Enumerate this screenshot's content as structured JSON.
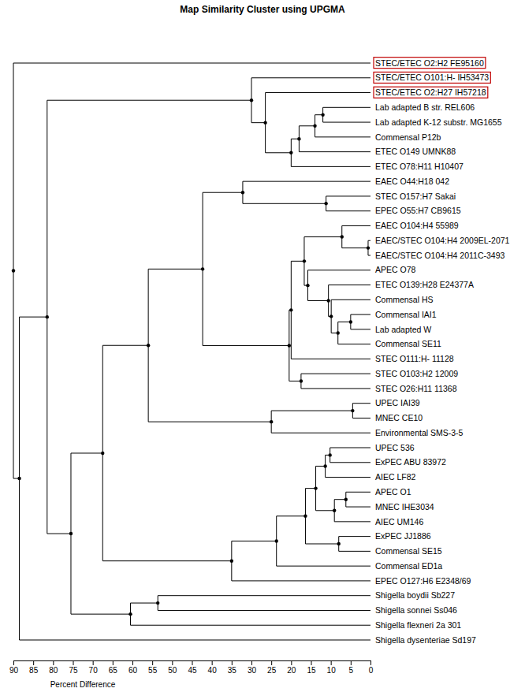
{
  "chart_data": {
    "type": "dendrogram",
    "title": "Map Similarity Cluster using UPGMA",
    "x_label": "Percent Difference",
    "xlim": [
      90,
      0
    ],
    "xticks": [
      90,
      85,
      80,
      75,
      70,
      65,
      60,
      55,
      50,
      45,
      40,
      35,
      30,
      25,
      20,
      15,
      10,
      5,
      0
    ],
    "tree": {
      "height": 90,
      "children": [
        {
          "name": "STEC/ETEC O2:H2 FE95160",
          "color": "#c00000"
        },
        {
          "height": 88.5,
          "children": [
            {
              "height": 81.5,
              "children": [
                {
                  "height": 30,
                  "children": [
                    {
                      "name": "STEC/ETEC O101:H- IH53473",
                      "color": "#c00000"
                    },
                    {
                      "height": 26.5,
                      "children": [
                        {
                          "name": "STEC/ETEC O2:H27 IH57218",
                          "color": "#c00000"
                        },
                        {
                          "height": 20,
                          "children": [
                            {
                              "height": 18,
                              "children": [
                                {
                                  "height": 14,
                                  "children": [
                                    {
                                      "height": 12,
                                      "children": [
                                        {
                                          "name": "Lab adapted B str. REL606"
                                        },
                                        {
                                          "name": "Lab adapted K-12 substr. MG1655"
                                        }
                                      ]
                                    },
                                    {
                                      "name": "Commensal P12b"
                                    }
                                  ]
                                },
                                {
                                  "name": "ETEC O149 UMNK88"
                                }
                              ]
                            },
                            {
                              "name": "ETEC O78:H11 H10407"
                            }
                          ]
                        }
                      ]
                    }
                  ]
                },
                {
                  "height": 75.5,
                  "children": [
                    {
                      "height": 67.5,
                      "children": [
                        {
                          "height": 56,
                          "children": [
                            {
                              "height": 42.3,
                              "children": [
                                {
                                  "height": 32.2,
                                  "children": [
                                    {
                                      "name": "EAEC O44:H18 042"
                                    },
                                    {
                                      "height": 11.2,
                                      "children": [
                                        {
                                          "name": "STEC O157:H7 Sakai"
                                        },
                                        {
                                          "name": "EPEC O55:H7 CB9615"
                                        }
                                      ]
                                    }
                                  ]
                                },
                                {
                                  "height": 20.5,
                                  "children": [
                                    {
                                      "height": 20,
                                      "children": [
                                        {
                                          "height": 16.7,
                                          "children": [
                                            {
                                              "height": 7.2,
                                              "children": [
                                                {
                                                  "name": "EAEC O104:H4 55989"
                                                },
                                                {
                                                  "height": 0.6,
                                                  "children": [
                                                    {
                                                      "name": "EAEC/STEC O104:H4 2009EL-2071"
                                                    },
                                                    {
                                                      "name": "EAEC/STEC O104:H4 2011C-3493"
                                                    }
                                                  ]
                                                }
                                              ]
                                            },
                                            {
                                              "height": 15.8,
                                              "children": [
                                                {
                                                  "name": "APEC O78"
                                                },
                                                {
                                                  "height": 10.6,
                                                  "children": [
                                                    {
                                                      "name": "ETEC O139:H28 E24377A"
                                                    },
                                                    {
                                                      "height": 9.9,
                                                      "children": [
                                                        {
                                                          "name": "Commensal HS"
                                                        },
                                                        {
                                                          "height": 8.2,
                                                          "children": [
                                                            {
                                                              "height": 5,
                                                              "children": [
                                                                {
                                                                  "name": "Commensal IAI1"
                                                                },
                                                                {
                                                                  "name": "Lab adapted W"
                                                                }
                                                              ]
                                                            },
                                                            {
                                                              "name": "Commensal SE11"
                                                            }
                                                          ]
                                                        }
                                                      ]
                                                    }
                                                  ]
                                                }
                                              ]
                                            }
                                          ]
                                        },
                                        {
                                          "name": "STEC O111:H- 11128"
                                        }
                                      ]
                                    },
                                    {
                                      "height": 17.5,
                                      "children": [
                                        {
                                          "name": "STEC O103:H2 12009"
                                        },
                                        {
                                          "name": "STEC O26:H11 11368"
                                        }
                                      ]
                                    }
                                  ]
                                }
                              ]
                            },
                            {
                              "height": 25,
                              "children": [
                                {
                                  "height": 4.5,
                                  "children": [
                                    {
                                      "name": "UPEC IAI39"
                                    },
                                    {
                                      "name": "MNEC CE10"
                                    }
                                  ]
                                },
                                {
                                  "name": "Environmental SMS-3-5"
                                }
                              ]
                            }
                          ]
                        },
                        {
                          "height": 35,
                          "children": [
                            {
                              "height": 23.7,
                              "children": [
                                {
                                  "height": 16.4,
                                  "children": [
                                    {
                                      "height": 13.8,
                                      "children": [
                                        {
                                          "height": 11.4,
                                          "children": [
                                            {
                                              "height": 10.2,
                                              "children": [
                                                {
                                                  "name": "UPEC 536"
                                                },
                                                {
                                                  "name": "ExPEC ABU 83972"
                                                }
                                              ]
                                            },
                                            {
                                              "name": "AIEC LF82"
                                            }
                                          ]
                                        },
                                        {
                                          "height": 9.1,
                                          "children": [
                                            {
                                              "height": 6.2,
                                              "children": [
                                                {
                                                  "name": "APEC O1"
                                                },
                                                {
                                                  "name": "MNEC IHE3034"
                                                }
                                              ]
                                            },
                                            {
                                              "name": "AIEC UM146"
                                            }
                                          ]
                                        }
                                      ]
                                    },
                                    {
                                      "height": 8,
                                      "children": [
                                        {
                                          "name": "ExPEC JJ1886"
                                        },
                                        {
                                          "name": "Commensal SE15"
                                        }
                                      ]
                                    }
                                  ]
                                },
                                {
                                  "name": "Commensal ED1a"
                                }
                              ]
                            },
                            {
                              "name": "EPEC O127:H6 E2348/69"
                            }
                          ]
                        }
                      ]
                    },
                    {
                      "height": 60.5,
                      "children": [
                        {
                          "height": 53.6,
                          "children": [
                            {
                              "name": "Shigella boydii Sb227"
                            },
                            {
                              "name": "Shigella sonnei Ss046"
                            }
                          ]
                        },
                        {
                          "name": "Shigella flexneri 2a 301"
                        }
                      ]
                    }
                  ]
                }
              ]
            },
            {
              "name": "Shigella dysenteriae Sd197"
            }
          ]
        }
      ]
    }
  }
}
